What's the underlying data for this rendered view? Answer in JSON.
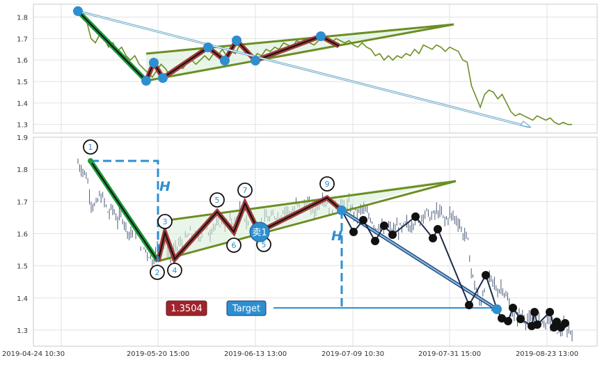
{
  "chart_data": [
    {
      "type": "line",
      "panel": "top",
      "ylim": [
        1.26,
        1.86
      ],
      "y_ticks": [
        "1.3",
        "1.4",
        "1.5",
        "1.6",
        "1.7",
        "1.8"
      ],
      "grid": true,
      "series": [
        {
          "role": "price",
          "color": "#6b8e23",
          "values": [
            1.82,
            1.8,
            1.78,
            1.7,
            1.68,
            1.72,
            1.7,
            1.66,
            1.68,
            1.64,
            1.66,
            1.62,
            1.6,
            1.62,
            1.58,
            1.56,
            1.54,
            1.52,
            1.55,
            1.58,
            1.56,
            1.53,
            1.54,
            1.57,
            1.56,
            1.59,
            1.6,
            1.58,
            1.6,
            1.62,
            1.6,
            1.63,
            1.62,
            1.65,
            1.62,
            1.64,
            1.63,
            1.67,
            1.66,
            1.62,
            1.6,
            1.63,
            1.62,
            1.65,
            1.64,
            1.66,
            1.65,
            1.68,
            1.67,
            1.66,
            1.69,
            1.68,
            1.7,
            1.68,
            1.67,
            1.69,
            1.72,
            1.7,
            1.68,
            1.7,
            1.69,
            1.68,
            1.69,
            1.67,
            1.66,
            1.68,
            1.66,
            1.65,
            1.62,
            1.63,
            1.6,
            1.62,
            1.6,
            1.62,
            1.61,
            1.63,
            1.62,
            1.65,
            1.63,
            1.67,
            1.66,
            1.65,
            1.67,
            1.66,
            1.64,
            1.66,
            1.65,
            1.64,
            1.6,
            1.59,
            1.48,
            1.43,
            1.38,
            1.44,
            1.46,
            1.45,
            1.42,
            1.44,
            1.4,
            1.36,
            1.34,
            1.35,
            1.34,
            1.33,
            1.32,
            1.34,
            1.33,
            1.32,
            1.33,
            1.31,
            1.3,
            1.31,
            1.3,
            1.3
          ]
        }
      ]
    },
    {
      "type": "candlestick",
      "panel": "bottom",
      "ylim": [
        1.25,
        1.9
      ],
      "y_ticks": [
        "1.3",
        "1.4",
        "1.5",
        "1.6",
        "1.7",
        "1.8",
        "1.9"
      ],
      "x_tick_labels": [
        "2019-04-24 10:30",
        "2019-05-20 15:00",
        "2019-06-13 13:00",
        "2019-07-09 10:30",
        "2019-07-31 15:00",
        "2019-08-23 13:00"
      ],
      "grid": true,
      "annotations": {
        "wave_labels": [
          "1",
          "2",
          "3",
          "4",
          "5",
          "6",
          "7",
          "5",
          "9"
        ],
        "h_marker": "H",
        "sell_marker": "卖1",
        "price_box": "1.3504",
        "target_box": "Target"
      },
      "colors": {
        "impulse_leg": "#1a9a3c",
        "zigzag_fill": "#a33a3a",
        "wedge_lines": "#6b8e23",
        "wedge_fill": "#d8efd8",
        "accent_blue": "#2e8fd0",
        "target_arrow": "#2e8fd0",
        "price_box_bg": "#a0242c",
        "dot_black": "#111111"
      }
    }
  ]
}
